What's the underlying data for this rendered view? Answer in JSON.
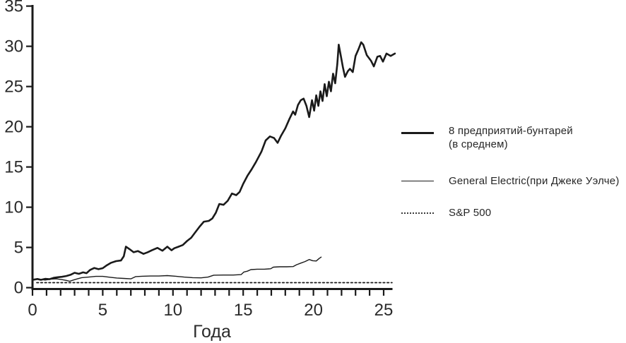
{
  "colors": {
    "line": "#1a1a1a",
    "axis": "#1a1a1a",
    "text": "#2a2a2a",
    "background": "#ffffff"
  },
  "legend": {
    "items": [
      {
        "label_line1": "8 предприятий-бунтарей",
        "label_line2": "(в среднем)",
        "style": "solid-thick"
      },
      {
        "label_line1": "General Electric(при Джеке Уэлче)",
        "label_line2": "",
        "style": "solid-thin"
      },
      {
        "label_line1": "S&P 500",
        "label_line2": "",
        "style": "dotted"
      }
    ]
  },
  "chart_data": {
    "type": "line",
    "title": "",
    "xlabel": "Года",
    "ylabel": "",
    "xlim": [
      0,
      26
    ],
    "ylim": [
      0,
      35
    ],
    "x_ticks": [
      0,
      5,
      10,
      15,
      20,
      25
    ],
    "y_ticks": [
      0,
      5,
      10,
      15,
      20,
      25,
      30,
      35
    ],
    "x_minor_tick_step": 1,
    "grid": false,
    "legend_position": "right",
    "series": [
      {
        "name": "8 предприятий-бунтарей (в среднем)",
        "style": "solid-thick",
        "stroke_width": 2.6,
        "points": [
          [
            0.1,
            1.0
          ],
          [
            0.35,
            1.08
          ],
          [
            0.6,
            0.97
          ],
          [
            0.9,
            1.1
          ],
          [
            1.2,
            1.05
          ],
          [
            1.5,
            1.22
          ],
          [
            1.8,
            1.3
          ],
          [
            2.1,
            1.35
          ],
          [
            2.4,
            1.45
          ],
          [
            2.7,
            1.6
          ],
          [
            3.0,
            1.85
          ],
          [
            3.3,
            1.72
          ],
          [
            3.6,
            1.9
          ],
          [
            3.85,
            1.8
          ],
          [
            4.1,
            2.2
          ],
          [
            4.4,
            2.45
          ],
          [
            4.7,
            2.3
          ],
          [
            5.0,
            2.42
          ],
          [
            5.3,
            2.8
          ],
          [
            5.6,
            3.1
          ],
          [
            5.95,
            3.3
          ],
          [
            6.3,
            3.38
          ],
          [
            6.5,
            3.9
          ],
          [
            6.65,
            5.1
          ],
          [
            6.9,
            4.8
          ],
          [
            7.2,
            4.4
          ],
          [
            7.5,
            4.55
          ],
          [
            7.9,
            4.2
          ],
          [
            8.2,
            4.4
          ],
          [
            8.5,
            4.65
          ],
          [
            8.9,
            4.95
          ],
          [
            9.25,
            4.6
          ],
          [
            9.6,
            5.1
          ],
          [
            9.9,
            4.65
          ],
          [
            10.1,
            4.9
          ],
          [
            10.4,
            5.1
          ],
          [
            10.7,
            5.3
          ],
          [
            11.0,
            5.8
          ],
          [
            11.3,
            6.2
          ],
          [
            11.6,
            6.9
          ],
          [
            11.9,
            7.6
          ],
          [
            12.2,
            8.2
          ],
          [
            12.55,
            8.3
          ],
          [
            12.8,
            8.6
          ],
          [
            13.05,
            9.3
          ],
          [
            13.3,
            10.4
          ],
          [
            13.6,
            10.3
          ],
          [
            13.9,
            10.8
          ],
          [
            14.2,
            11.7
          ],
          [
            14.5,
            11.5
          ],
          [
            14.75,
            11.9
          ],
          [
            15.0,
            12.9
          ],
          [
            15.3,
            13.9
          ],
          [
            15.6,
            14.7
          ],
          [
            15.9,
            15.6
          ],
          [
            16.3,
            16.9
          ],
          [
            16.6,
            18.3
          ],
          [
            16.9,
            18.8
          ],
          [
            17.2,
            18.6
          ],
          [
            17.45,
            18.0
          ],
          [
            17.7,
            18.9
          ],
          [
            18.0,
            19.8
          ],
          [
            18.3,
            21.0
          ],
          [
            18.55,
            21.9
          ],
          [
            18.7,
            21.5
          ],
          [
            18.9,
            22.7
          ],
          [
            19.1,
            23.3
          ],
          [
            19.3,
            23.5
          ],
          [
            19.5,
            22.6
          ],
          [
            19.7,
            21.2
          ],
          [
            19.9,
            23.3
          ],
          [
            20.05,
            22.0
          ],
          [
            20.2,
            23.9
          ],
          [
            20.35,
            22.6
          ],
          [
            20.5,
            24.4
          ],
          [
            20.65,
            23.2
          ],
          [
            20.8,
            25.3
          ],
          [
            20.95,
            23.8
          ],
          [
            21.1,
            25.6
          ],
          [
            21.25,
            24.4
          ],
          [
            21.4,
            26.6
          ],
          [
            21.55,
            25.4
          ],
          [
            21.7,
            27.8
          ],
          [
            21.8,
            30.2
          ],
          [
            21.95,
            28.8
          ],
          [
            22.1,
            27.4
          ],
          [
            22.25,
            26.2
          ],
          [
            22.45,
            26.9
          ],
          [
            22.6,
            27.2
          ],
          [
            22.8,
            26.8
          ],
          [
            23.0,
            28.8
          ],
          [
            23.2,
            29.6
          ],
          [
            23.4,
            30.5
          ],
          [
            23.55,
            30.2
          ],
          [
            23.8,
            28.9
          ],
          [
            24.1,
            28.2
          ],
          [
            24.3,
            27.5
          ],
          [
            24.55,
            28.7
          ],
          [
            24.75,
            28.8
          ],
          [
            24.95,
            28.1
          ],
          [
            25.2,
            29.1
          ],
          [
            25.5,
            28.8
          ],
          [
            25.8,
            29.1
          ]
        ]
      },
      {
        "name": "General Electric(при Джеке Уэлче)",
        "style": "solid-thin",
        "stroke_width": 1.4,
        "points": [
          [
            0.1,
            1.0
          ],
          [
            0.5,
            1.05
          ],
          [
            0.9,
            0.95
          ],
          [
            1.3,
            1.05
          ],
          [
            1.7,
            1.1
          ],
          [
            2.1,
            1.0
          ],
          [
            2.4,
            0.9
          ],
          [
            2.65,
            0.8
          ],
          [
            2.9,
            0.95
          ],
          [
            3.2,
            1.1
          ],
          [
            3.5,
            1.25
          ],
          [
            4.0,
            1.32
          ],
          [
            4.5,
            1.4
          ],
          [
            5.0,
            1.4
          ],
          [
            5.5,
            1.3
          ],
          [
            6.0,
            1.2
          ],
          [
            6.5,
            1.15
          ],
          [
            7.0,
            1.1
          ],
          [
            7.35,
            1.38
          ],
          [
            7.8,
            1.42
          ],
          [
            8.4,
            1.45
          ],
          [
            9.0,
            1.45
          ],
          [
            9.6,
            1.5
          ],
          [
            10.2,
            1.42
          ],
          [
            10.8,
            1.32
          ],
          [
            11.4,
            1.25
          ],
          [
            12.0,
            1.22
          ],
          [
            12.5,
            1.32
          ],
          [
            12.9,
            1.55
          ],
          [
            13.6,
            1.57
          ],
          [
            14.3,
            1.57
          ],
          [
            14.85,
            1.62
          ],
          [
            15.05,
            1.95
          ],
          [
            15.3,
            2.05
          ],
          [
            15.55,
            2.25
          ],
          [
            16.0,
            2.3
          ],
          [
            16.5,
            2.3
          ],
          [
            16.95,
            2.35
          ],
          [
            17.15,
            2.55
          ],
          [
            17.6,
            2.6
          ],
          [
            18.1,
            2.6
          ],
          [
            18.55,
            2.62
          ],
          [
            18.8,
            2.85
          ],
          [
            19.1,
            3.05
          ],
          [
            19.4,
            3.25
          ],
          [
            19.7,
            3.5
          ],
          [
            19.95,
            3.35
          ],
          [
            20.2,
            3.32
          ],
          [
            20.4,
            3.62
          ],
          [
            20.55,
            3.8
          ]
        ]
      },
      {
        "name": "S&P 500",
        "style": "dotted",
        "stroke_width": 1.8,
        "points": [
          [
            0.3,
            0.62
          ],
          [
            25.6,
            0.62
          ]
        ]
      }
    ]
  }
}
